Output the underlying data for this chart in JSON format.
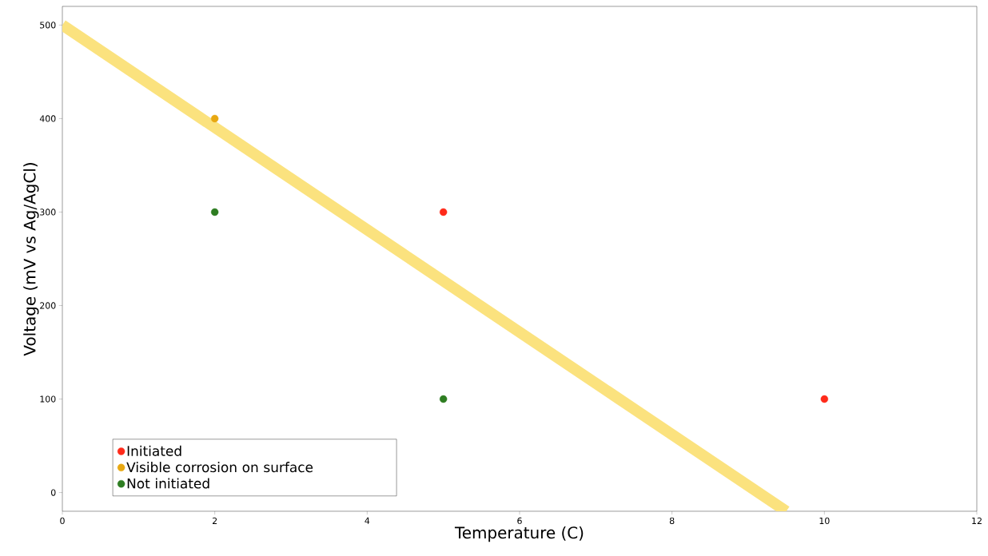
{
  "chart_data": {
    "type": "scatter",
    "xlabel": "Temperature (C)",
    "ylabel": "Voltage (mV vs Ag/AgCl)",
    "xlim": [
      0,
      12
    ],
    "ylim": [
      -20,
      520
    ],
    "xticks": [
      0,
      2,
      4,
      6,
      8,
      10,
      12
    ],
    "yticks": [
      0,
      100,
      200,
      300,
      400,
      500
    ],
    "grid": false,
    "legend": "bottom left",
    "series": [
      {
        "name": "Initiated",
        "marker": "circle",
        "color": "#ff2a1a",
        "x": [
          5,
          10
        ],
        "values": [
          300,
          100
        ]
      },
      {
        "name": "Visible corrosion on surface",
        "marker": "circle",
        "color": "#e8a812",
        "x": [
          2
        ],
        "values": [
          400
        ]
      },
      {
        "name": "Not initiated",
        "marker": "circle",
        "color": "#2e7d22",
        "x": [
          2,
          5
        ],
        "values": [
          300,
          100
        ]
      },
      {
        "type": "line",
        "marker": "none",
        "color": "#fbe27e",
        "x": [
          0,
          9.5
        ],
        "values": [
          500,
          -20
        ]
      }
    ]
  }
}
